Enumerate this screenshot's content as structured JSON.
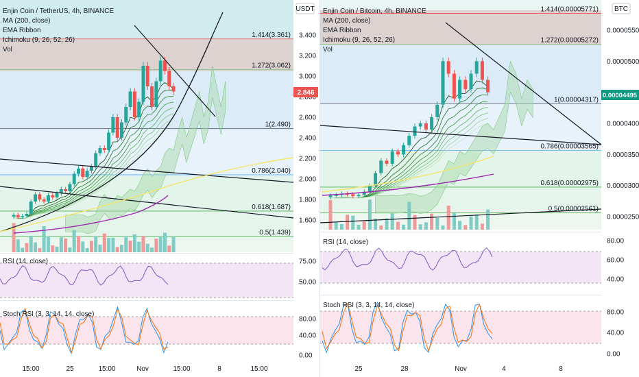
{
  "left": {
    "title": "Enjin Coin / TetherUS, 4h, BINANCE",
    "indicators": [
      "MA (200, close)",
      "EMA Ribbon",
      "Ichimoku (9, 26, 52, 26)",
      "Vol"
    ],
    "currency": "USDT",
    "price_ticks": [
      "3.400",
      "3.200",
      "3.000",
      "2.800",
      "2.600",
      "2.400",
      "2.200",
      "2.000",
      "1.800",
      "1.600"
    ],
    "last_price": "2.846",
    "fib_labels": [
      "1.414(3.361)",
      "1.272(3.062)",
      "1(2.490)",
      "0.786(2.040)",
      "0.618(1.687)",
      "0.5(1.439)"
    ],
    "rsi_title": "RSI (14, close)",
    "rsi_ticks": [
      "75.00",
      "50.00"
    ],
    "stoch_title": "Stoch RSI (3, 3, 14, 14, close)",
    "stoch_ticks": [
      "80.00",
      "40.00",
      "0.00"
    ],
    "time_labels": [
      "15:00",
      "25",
      "15:00",
      "Nov",
      "15:00",
      "8",
      "15:00"
    ]
  },
  "right": {
    "title": "Enjin Coin / Bitcoin, 4h, BINANCE",
    "indicators": [
      "MA (200, close)",
      "EMA Ribbon",
      "Ichimoku (9, 26, 52, 26)",
      "Vol"
    ],
    "currency": "BTC",
    "price_ticks": [
      "0.00005500",
      "0.00005000",
      "0.00004500",
      "0.00004000",
      "0.00003500",
      "0.00003000",
      "0.00002500"
    ],
    "last_price": "0.00004495",
    "fib_labels": [
      "1.414(0.00005771)",
      "1.272(0.00005272)",
      "1(0.00004317)",
      "0.786(0.00003565)",
      "0.618(0.00002975)",
      "0.5(0.00002561)"
    ],
    "rsi_title": "RSI (14, close)",
    "rsi_ticks": [
      "80.00",
      "60.00",
      "40.00"
    ],
    "stoch_title": "Stoch RSI (3, 3, 14, 14, close)",
    "stoch_ticks": [
      "80.00",
      "40.00",
      "0.00"
    ],
    "time_labels": [
      "25",
      "28",
      "Nov",
      "4",
      "8"
    ]
  },
  "colors": {
    "up": "#26a69a",
    "down": "#ef5350",
    "fib_upper_zone": "#d7ccc8",
    "fib_blue_zone": "#e3f2fd",
    "rsi_band": "#f3e5f5",
    "stoch_band": "#fce4ec",
    "ma200": "#9c27b0",
    "last_price_left": "#ef5350",
    "last_price_right": "#089981"
  },
  "chart_data": [
    {
      "type": "candlestick",
      "title": "Enjin Coin / TetherUS, 4h, BINANCE",
      "ylim": [
        1.55,
        3.55
      ],
      "fib_levels": [
        {
          "ratio": 1.414,
          "price": 3.361
        },
        {
          "ratio": 1.272,
          "price": 3.062
        },
        {
          "ratio": 1.0,
          "price": 2.49
        },
        {
          "ratio": 0.786,
          "price": 2.04
        },
        {
          "ratio": 0.618,
          "price": 1.687
        },
        {
          "ratio": 0.5,
          "price": 1.439
        }
      ],
      "close_path": [
        1.65,
        1.63,
        1.64,
        1.66,
        1.78,
        1.85,
        1.8,
        1.78,
        1.84,
        1.82,
        1.86,
        1.9,
        1.88,
        1.95,
        2.05,
        2.1,
        2.02,
        2.08,
        2.12,
        2.25,
        2.3,
        2.28,
        2.45,
        2.6,
        2.4,
        2.55,
        2.7,
        2.85,
        2.6,
        2.75,
        3.1,
        2.9,
        2.7,
        2.95,
        3.15,
        3.05,
        2.9,
        2.85
      ],
      "last_price": 2.846
    },
    {
      "type": "candlestick",
      "title": "Enjin Coin / Bitcoin, 4h, BINANCE",
      "ylim": [
        2.25e-05,
        5.85e-05
      ],
      "fib_levels": [
        {
          "ratio": 1.414,
          "price": 5.771e-05
        },
        {
          "ratio": 1.272,
          "price": 5.272e-05
        },
        {
          "ratio": 1.0,
          "price": 4.317e-05
        },
        {
          "ratio": 0.786,
          "price": 3.565e-05
        },
        {
          "ratio": 0.618,
          "price": 2.975e-05
        },
        {
          "ratio": 0.5,
          "price": 2.561e-05
        }
      ],
      "close_path": [
        2.84e-05,
        2.85e-05,
        2.87e-05,
        2.86e-05,
        2.83e-05,
        2.85e-05,
        2.9e-05,
        3e-05,
        3.2e-05,
        3.4e-05,
        3.35e-05,
        3.55e-05,
        3.5e-05,
        3.65e-05,
        3.8e-05,
        3.95e-05,
        4e-05,
        3.9e-05,
        4.1e-05,
        4.3e-05,
        5e-05,
        4.8e-05,
        4.4e-05,
        4.7e-05,
        4.55e-05,
        4.8e-05,
        5e-05,
        4.7e-05,
        4.5e-05
      ],
      "last_price": 4.495e-05
    }
  ]
}
